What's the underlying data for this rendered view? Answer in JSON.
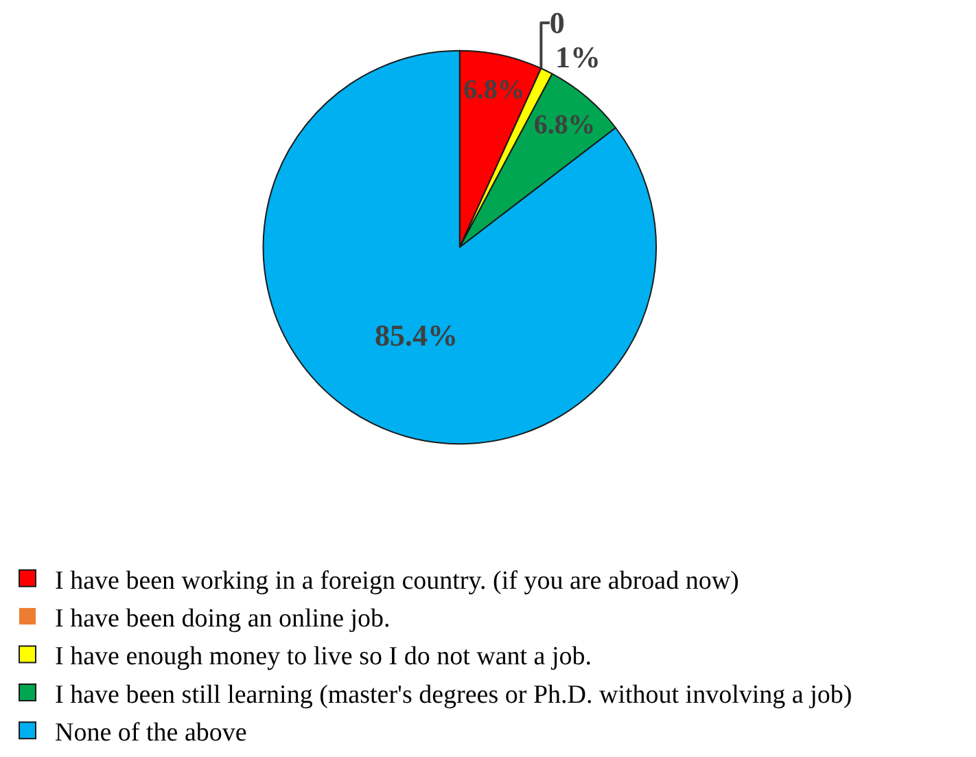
{
  "chart_data": {
    "type": "pie",
    "categories": [
      "I have been working in a foreign country. (if you are abroad now)",
      "I have been doing an online job.",
      "I have enough money to live so I do not want a job.",
      "I have been still learning (master's degrees or Ph.D. without involving a job)",
      "None of the above"
    ],
    "values": [
      6.8,
      0,
      1,
      6.8,
      85.4
    ],
    "value_labels": [
      "6.8%",
      "0",
      "1%",
      "6.8%",
      "85.4%"
    ],
    "colors": [
      "#ff0000",
      "#ed7d31",
      "#ffff00",
      "#00a651",
      "#00b0f0"
    ],
    "legend": "bottom"
  }
}
